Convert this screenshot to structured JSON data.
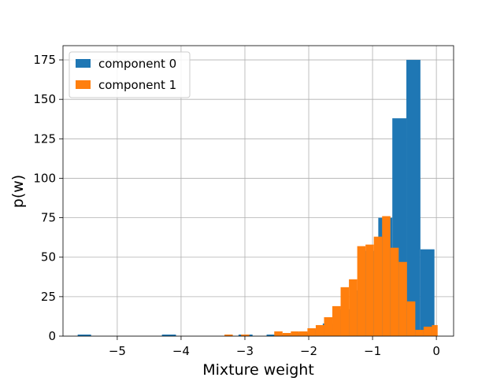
{
  "chart_data": {
    "type": "bar",
    "title": "",
    "xlabel": "Mixture weight",
    "ylabel": "p(w)",
    "xlim": [
      -5.85,
      0.27
    ],
    "ylim": [
      0,
      184
    ],
    "xticks": [
      -5,
      -4,
      -3,
      -2,
      -1,
      0
    ],
    "xtick_labels": [
      "−5",
      "−4",
      "−3",
      "−2",
      "−1",
      "0"
    ],
    "yticks": [
      0,
      25,
      50,
      75,
      100,
      125,
      150,
      175
    ],
    "ytick_labels": [
      "0",
      "25",
      "50",
      "75",
      "100",
      "125",
      "150",
      "175"
    ],
    "grid": true,
    "legend_position": "top-left",
    "series": [
      {
        "name": "component 0",
        "color": "#1f77b4",
        "bins": [
          {
            "x0": -5.62,
            "x1": -5.41,
            "value": 1
          },
          {
            "x0": -4.3,
            "x1": -4.08,
            "value": 1
          },
          {
            "x0": -3.1,
            "x1": -2.88,
            "value": 1
          },
          {
            "x0": -2.66,
            "x1": -2.44,
            "value": 1
          },
          {
            "x0": -2.44,
            "x1": -2.22,
            "value": 1
          },
          {
            "x0": -2.22,
            "x1": -2.0,
            "value": 2
          },
          {
            "x0": -2.0,
            "x1": -1.78,
            "value": 4
          },
          {
            "x0": -1.78,
            "x1": -1.56,
            "value": 8
          },
          {
            "x0": -1.56,
            "x1": -1.34,
            "value": 17
          },
          {
            "x0": -1.34,
            "x1": -1.13,
            "value": 29
          },
          {
            "x0": -1.13,
            "x1": -0.91,
            "value": 54
          },
          {
            "x0": -0.91,
            "x1": -0.69,
            "value": 75
          },
          {
            "x0": -0.69,
            "x1": -0.47,
            "value": 138
          },
          {
            "x0": -0.47,
            "x1": -0.25,
            "value": 175
          },
          {
            "x0": -0.25,
            "x1": -0.03,
            "value": 55
          }
        ]
      },
      {
        "name": "component 1",
        "color": "#ff7f0e",
        "bins": [
          {
            "x0": -3.32,
            "x1": -3.19,
            "value": 1
          },
          {
            "x0": -3.06,
            "x1": -2.93,
            "value": 1
          },
          {
            "x0": -2.54,
            "x1": -2.41,
            "value": 3
          },
          {
            "x0": -2.41,
            "x1": -2.28,
            "value": 2
          },
          {
            "x0": -2.28,
            "x1": -2.15,
            "value": 3
          },
          {
            "x0": -2.15,
            "x1": -2.02,
            "value": 3
          },
          {
            "x0": -2.02,
            "x1": -1.89,
            "value": 5
          },
          {
            "x0": -1.89,
            "x1": -1.76,
            "value": 7
          },
          {
            "x0": -1.76,
            "x1": -1.63,
            "value": 12
          },
          {
            "x0": -1.63,
            "x1": -1.5,
            "value": 19
          },
          {
            "x0": -1.5,
            "x1": -1.37,
            "value": 31
          },
          {
            "x0": -1.37,
            "x1": -1.24,
            "value": 36
          },
          {
            "x0": -1.24,
            "x1": -1.11,
            "value": 57
          },
          {
            "x0": -1.11,
            "x1": -0.98,
            "value": 58
          },
          {
            "x0": -0.98,
            "x1": -0.85,
            "value": 63
          },
          {
            "x0": -0.85,
            "x1": -0.72,
            "value": 76
          },
          {
            "x0": -0.72,
            "x1": -0.59,
            "value": 56
          },
          {
            "x0": -0.59,
            "x1": -0.46,
            "value": 47
          },
          {
            "x0": -0.46,
            "x1": -0.33,
            "value": 22
          },
          {
            "x0": -0.33,
            "x1": -0.2,
            "value": 4
          },
          {
            "x0": -0.2,
            "x1": -0.07,
            "value": 6
          },
          {
            "x0": -0.07,
            "x1": 0.02,
            "value": 7
          }
        ]
      }
    ]
  }
}
